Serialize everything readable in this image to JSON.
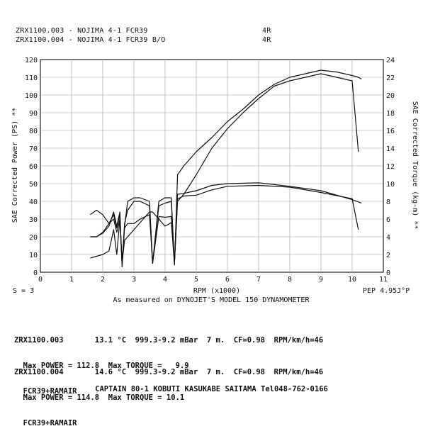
{
  "header": {
    "run1": "ZRX1100.003 - NOJIMA 4-1 FCR39",
    "run1_gear": "4R",
    "run2": "ZRX1100.004 - NOJIMA 4-1 FCR39 B/O",
    "run2_gear": "4R"
  },
  "chart_data": {
    "type": "line",
    "xlabel": "RPM (x1000)",
    "ylabel_left": "SAE Corrected Power (PS) **",
    "ylabel_right": "SAE Corrected Torque (kg-m) **",
    "xlim": [
      0,
      11
    ],
    "ylim_left": [
      0,
      120
    ],
    "ylim_right": [
      0,
      24
    ],
    "x_ticks": [
      "0",
      "1",
      "2",
      "3",
      "4",
      "5",
      "6",
      "7",
      "8",
      "9",
      "10",
      "11"
    ],
    "y_ticks_left": [
      "0",
      "10",
      "20",
      "30",
      "40",
      "50",
      "60",
      "70",
      "80",
      "90",
      "100",
      "110",
      "120"
    ],
    "y_ticks_right": [
      "0",
      "2",
      "4",
      "6",
      "8",
      "10",
      "12",
      "14",
      "16",
      "18",
      "20",
      "22",
      "24"
    ],
    "grid": true,
    "series": [
      {
        "name": "ZRX1100.003",
        "quantity": "power",
        "axis": "left",
        "x": [
          1.6,
          1.8,
          2.0,
          2.2,
          2.35,
          2.45,
          2.55,
          2.62,
          2.7,
          2.8,
          3.0,
          3.2,
          3.5,
          3.6,
          3.8,
          4.0,
          4.2,
          4.3,
          4.4,
          4.6,
          5.0,
          5.5,
          6.0,
          6.5,
          7.0,
          7.5,
          8.0,
          8.5,
          9.0,
          9.5,
          10.0,
          10.2
        ],
        "y": [
          8,
          9,
          10,
          12,
          24,
          10,
          30,
          5,
          18,
          20,
          24,
          28,
          34,
          34,
          30,
          26,
          28,
          5,
          40,
          44,
          55,
          70,
          81,
          90,
          98,
          105,
          108,
          110,
          112,
          110,
          108,
          68
        ]
      },
      {
        "name": "ZRX1100.004",
        "quantity": "power",
        "axis": "left",
        "x": [
          1.6,
          1.8,
          2.0,
          2.2,
          2.35,
          2.45,
          2.55,
          2.62,
          2.7,
          2.8,
          3.0,
          3.2,
          3.5,
          3.6,
          3.8,
          4.0,
          4.2,
          4.3,
          4.4,
          4.6,
          5.0,
          5.5,
          6.0,
          6.5,
          7.0,
          7.5,
          8.0,
          8.5,
          9.0,
          9.5,
          10.0,
          10.2,
          10.3
        ],
        "y": [
          20,
          20,
          22,
          26,
          34,
          26,
          34,
          3,
          26,
          40,
          42,
          42,
          40,
          5,
          40,
          42,
          42,
          4,
          55,
          60,
          68,
          76,
          85,
          92,
          100,
          106,
          110,
          112,
          114,
          113,
          111,
          110,
          109
        ]
      },
      {
        "name": "ZRX1100.003",
        "quantity": "torque",
        "axis": "right",
        "x": [
          1.6,
          1.8,
          2.0,
          2.2,
          2.35,
          2.45,
          2.55,
          2.62,
          2.7,
          2.8,
          3.0,
          3.2,
          3.5,
          3.6,
          3.8,
          4.0,
          4.2,
          4.3,
          4.4,
          4.6,
          5.0,
          5.5,
          6.0,
          7.0,
          8.0,
          9.0,
          10.0,
          10.2
        ],
        "y": [
          6.5,
          7,
          6.5,
          5.5,
          6,
          4.5,
          6,
          1,
          5,
          5.5,
          5.5,
          6,
          6.5,
          1,
          6.3,
          6.2,
          6.3,
          1,
          8.3,
          8.6,
          8.7,
          9.3,
          9.7,
          9.8,
          9.6,
          9.0,
          8.3,
          4.8
        ]
      },
      {
        "name": "ZRX1100.004",
        "quantity": "torque",
        "axis": "right",
        "x": [
          1.6,
          1.8,
          2.0,
          2.2,
          2.35,
          2.45,
          2.55,
          2.62,
          2.7,
          2.8,
          3.0,
          3.2,
          3.5,
          3.6,
          3.8,
          4.0,
          4.2,
          4.3,
          4.4,
          4.6,
          5.0,
          5.5,
          6.0,
          7.0,
          8.0,
          9.0,
          10.0,
          10.3
        ],
        "y": [
          4,
          4,
          4.5,
          5.5,
          6.5,
          5,
          6.5,
          1,
          5.5,
          7,
          8,
          8,
          7.5,
          1,
          7.5,
          7.8,
          8,
          1,
          8.8,
          8.9,
          9.2,
          9.8,
          10,
          10.1,
          9.7,
          9.2,
          8.2,
          7.8
        ]
      }
    ]
  },
  "bottom_left": "S = 3",
  "bottom_right": "PEP 4.95J°P",
  "caption": "As measured on DYNOJET'S MODEL 150 DYNAMOMETER",
  "runs": [
    {
      "line1": "ZRX1100.003       13.1 °C  999.3-9.2 mBar  7 m.  CF=0.98  RPM/km/h=46",
      "line2": "  Max POWER = 112.8  Max TORQUE =   9.9",
      "line3": "  FCR39+RAMAIR"
    },
    {
      "line1": "ZRX1100.004       14.6 °C  999.3-9.2 mBar  7 m.  CF=0.98  RPM/km/h=46",
      "line2": "  Max POWER = 114.8  Max TORQUE = 10.1",
      "line3": "  FCR39+RAMAIR"
    }
  ],
  "footer": "CAPTAIN 80-1 KOBUTI KASUKABE SAITAMA Tel048-762-0166"
}
